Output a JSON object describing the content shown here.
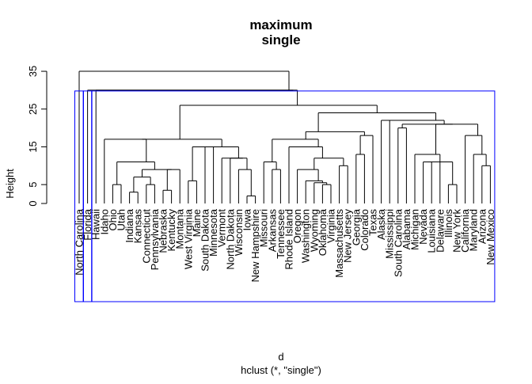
{
  "chart_data": {
    "type": "dendrogram",
    "title": [
      "maximum",
      "single"
    ],
    "xlabel": "d",
    "sublabel": "hclust (*, \"single\")",
    "ylabel": "Height",
    "yticks": [
      0,
      5,
      15,
      25,
      35
    ],
    "ylim": [
      0,
      35
    ],
    "leaves": [
      "North Carolina",
      "Florida",
      "Hawaii",
      "Idaho",
      "Ohio",
      "Utah",
      "Indiana",
      "Kansas",
      "Connecticut",
      "Pennsylvania",
      "Nebraska",
      "Kentucky",
      "Montana",
      "West Virginia",
      "Maine",
      "South Dakota",
      "Minnesota",
      "Vermont",
      "North Dakota",
      "Wisconsin",
      "Iowa",
      "New Hampshire",
      "Missouri",
      "Arkansas",
      "Tennessee",
      "Rhode Island",
      "Oregon",
      "Washington",
      "Wyoming",
      "Oklahoma",
      "Virginia",
      "Massachusetts",
      "New Jersey",
      "Georgia",
      "Colorado",
      "Texas",
      "Alaska",
      "Mississippi",
      "South Carolina",
      "Alabama",
      "Michigan",
      "Nevada",
      "Louisiana",
      "Delaware",
      "Illinois",
      "New York",
      "California",
      "Maryland",
      "Arizona",
      "New Mexico"
    ],
    "merges": [
      {
        "a": [
          44
        ],
        "b": [
          45
        ],
        "h": 5.0
      },
      {
        "a": [
          20
        ],
        "b": [
          21
        ],
        "h": 2.0
      },
      {
        "a": [
          29
        ],
        "b": [
          30
        ],
        "h": 5.0
      },
      {
        "a": [
          28
        ],
        "b": [
          29,
          30
        ],
        "h": 5.5
      },
      {
        "a": [
          27
        ],
        "b": [
          28,
          29,
          30
        ],
        "h": 6.0
      },
      {
        "a": [
          13
        ],
        "b": [
          14
        ],
        "h": 6.0
      },
      {
        "a": [
          4
        ],
        "b": [
          5
        ],
        "h": 5.0
      },
      {
        "a": [
          6
        ],
        "b": [
          7
        ],
        "h": 3.0
      },
      {
        "a": [
          8
        ],
        "b": [
          9
        ],
        "h": 5.0
      },
      {
        "a": [
          6,
          7
        ],
        "b": [
          8,
          9
        ],
        "h": 7.0
      },
      {
        "a": [
          10
        ],
        "b": [
          11
        ],
        "h": 3.5
      },
      {
        "a": [
          10,
          11
        ],
        "b": [
          12
        ],
        "h": 9.0
      },
      {
        "a": [
          6,
          7,
          8,
          9
        ],
        "b": [
          10,
          11,
          12
        ],
        "h": 9.0
      },
      {
        "a": [
          4,
          5
        ],
        "b": [
          6,
          7,
          8,
          9,
          10,
          11,
          12
        ],
        "h": 11.0
      },
      {
        "a": [
          3
        ],
        "b": [
          4,
          5,
          6,
          7,
          8,
          9,
          10,
          11,
          12
        ],
        "h": 17.0
      },
      {
        "a": [
          19
        ],
        "b": [
          20,
          21
        ],
        "h": 9.0
      },
      {
        "a": [
          18
        ],
        "b": [
          19,
          20,
          21
        ],
        "h": 12.0
      },
      {
        "a": [
          17
        ],
        "b": [
          18,
          19,
          20,
          21
        ],
        "h": 12.0
      },
      {
        "a": [
          16
        ],
        "b": [
          17,
          18,
          19,
          20,
          21
        ],
        "h": 15.0
      },
      {
        "a": [
          15
        ],
        "b": [
          16,
          17,
          18,
          19,
          20,
          21
        ],
        "h": 15.0
      },
      {
        "a": [
          13,
          14
        ],
        "b": [
          15,
          16,
          17,
          18,
          19,
          20,
          21
        ],
        "h": 15.0
      },
      {
        "a": [
          3,
          4,
          5,
          6,
          7,
          8,
          9,
          10,
          11,
          12
        ],
        "b": [
          13,
          14,
          15,
          16,
          17,
          18,
          19,
          20,
          21
        ],
        "h": 17.0
      },
      {
        "a": [
          23
        ],
        "b": [
          24
        ],
        "h": 9.0
      },
      {
        "a": [
          22
        ],
        "b": [
          23,
          24
        ],
        "h": 11.0
      },
      {
        "a": [
          26
        ],
        "b": [
          27,
          28,
          29,
          30
        ],
        "h": 9.0
      },
      {
        "a": [
          31
        ],
        "b": [
          32
        ],
        "h": 10.0
      },
      {
        "a": [
          26,
          27,
          28,
          29,
          30
        ],
        "b": [
          31,
          32
        ],
        "h": 12.0
      },
      {
        "a": [
          25
        ],
        "b": [
          26,
          27,
          28,
          29,
          30,
          31,
          32
        ],
        "h": 15.0
      },
      {
        "a": [
          22,
          23,
          24
        ],
        "b": [
          25,
          26,
          27,
          28,
          29,
          30,
          31,
          32
        ],
        "h": 17.0
      },
      {
        "a": [
          33
        ],
        "b": [
          34
        ],
        "h": 13.0
      },
      {
        "a": [
          33,
          34
        ],
        "b": [
          35
        ],
        "h": 18.0
      },
      {
        "a": [
          22,
          23,
          24,
          25,
          26,
          27,
          28,
          29,
          30,
          31,
          32
        ],
        "b": [
          33,
          34,
          35
        ],
        "h": 19.0
      },
      {
        "a": [
          41
        ],
        "b": [
          42
        ],
        "h": 11.0
      },
      {
        "a": [
          41,
          42
        ],
        "b": [
          43
        ],
        "h": 11.0
      },
      {
        "a": [
          41,
          42,
          43
        ],
        "b": [
          44,
          45
        ],
        "h": 11.0
      },
      {
        "a": [
          40
        ],
        "b": [
          41,
          42,
          43,
          44,
          45
        ],
        "h": 13.0
      },
      {
        "a": [
          48
        ],
        "b": [
          49
        ],
        "h": 10.0
      },
      {
        "a": [
          47
        ],
        "b": [
          48,
          49
        ],
        "h": 13.0
      },
      {
        "a": [
          46
        ],
        "b": [
          47,
          48,
          49
        ],
        "h": 18.0
      },
      {
        "a": [
          40,
          41,
          42,
          43,
          44,
          45
        ],
        "b": [
          46,
          47,
          48,
          49
        ],
        "h": 21.0
      },
      {
        "a": [
          38
        ],
        "b": [
          39
        ],
        "h": 20.0
      },
      {
        "a": [
          38,
          39
        ],
        "b": [
          40,
          41,
          42,
          43,
          44,
          45,
          46,
          47,
          48,
          49
        ],
        "h": 21.0
      },
      {
        "a": [
          37
        ],
        "b": [
          38,
          39,
          40,
          41,
          42,
          43,
          44,
          45,
          46,
          47,
          48,
          49
        ],
        "h": 22.0
      },
      {
        "a": [
          36
        ],
        "b": [
          37,
          38,
          39,
          40,
          41,
          42,
          43,
          44,
          45,
          46,
          47,
          48,
          49
        ],
        "h": 22.0
      },
      {
        "a": [
          22,
          23,
          24,
          25,
          26,
          27,
          28,
          29,
          30,
          31,
          32,
          33,
          34,
          35
        ],
        "b": [
          36,
          37,
          38,
          39,
          40,
          41,
          42,
          43,
          44,
          45,
          46,
          47,
          48,
          49
        ],
        "h": 24.0
      },
      {
        "a": [
          3,
          4,
          5,
          6,
          7,
          8,
          9,
          10,
          11,
          12,
          13,
          14,
          15,
          16,
          17,
          18,
          19,
          20,
          21
        ],
        "b": [
          22,
          23,
          24,
          25,
          26,
          27,
          28,
          29,
          30,
          31,
          32,
          33,
          34,
          35,
          36,
          37,
          38,
          39,
          40,
          41,
          42,
          43,
          44,
          45,
          46,
          47,
          48,
          49
        ],
        "h": 26.0
      },
      {
        "a": [
          2
        ],
        "b": [
          3,
          4,
          5,
          6,
          7,
          8,
          9,
          10,
          11,
          12,
          13,
          14,
          15,
          16,
          17,
          18,
          19,
          20,
          21,
          22,
          23,
          24,
          25,
          26,
          27,
          28,
          29,
          30,
          31,
          32,
          33,
          34,
          35,
          36,
          37,
          38,
          39,
          40,
          41,
          42,
          43,
          44,
          45,
          46,
          47,
          48,
          49
        ],
        "h": 30.0
      },
      {
        "a": [
          1
        ],
        "b": [
          2,
          3,
          4,
          5,
          6,
          7,
          8,
          9,
          10,
          11,
          12,
          13,
          14,
          15,
          16,
          17,
          18,
          19,
          20,
          21,
          22,
          23,
          24,
          25,
          26,
          27,
          28,
          29,
          30,
          31,
          32,
          33,
          34,
          35,
          36,
          37,
          38,
          39,
          40,
          41,
          42,
          43,
          44,
          45,
          46,
          47,
          48,
          49
        ],
        "h": 30.0
      },
      {
        "a": [
          0
        ],
        "b": [
          1,
          2,
          3,
          4,
          5,
          6,
          7,
          8,
          9,
          10,
          11,
          12,
          13,
          14,
          15,
          16,
          17,
          18,
          19,
          20,
          21,
          22,
          23,
          24,
          25,
          26,
          27,
          28,
          29,
          30,
          31,
          32,
          33,
          34,
          35,
          36,
          37,
          38,
          39,
          40,
          41,
          42,
          43,
          44,
          45,
          46,
          47,
          48,
          49
        ],
        "h": 35.0
      }
    ],
    "cluster_boxes": [
      {
        "leaves": [
          0,
          0
        ],
        "color": "#0000ff"
      },
      {
        "leaves": [
          1,
          1
        ],
        "color": "#0000ff"
      },
      {
        "leaves": [
          2,
          49
        ],
        "color": "#0000ff"
      }
    ],
    "line_color": "#000000"
  }
}
